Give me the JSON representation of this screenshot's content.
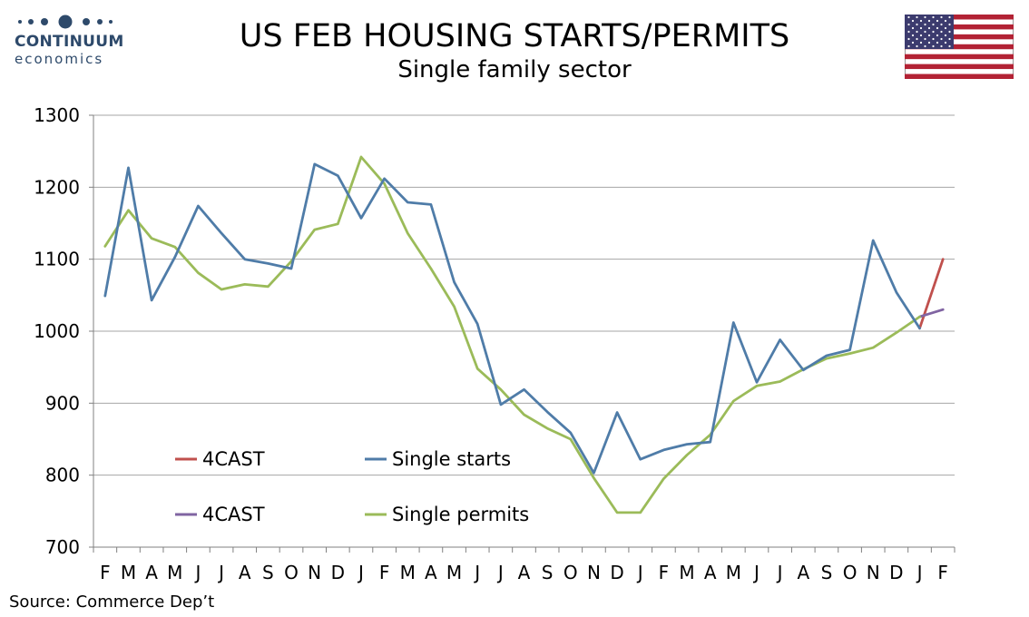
{
  "logo": {
    "brand": "CONTINUUM",
    "sub": "economics"
  },
  "chart_data": {
    "type": "line",
    "title": "US FEB HOUSING STARTS/PERMITS",
    "subtitle": "Single family sector",
    "source": "Source: Commerce Dep’t",
    "categories": [
      "F",
      "M",
      "A",
      "M",
      "J",
      "J",
      "A",
      "S",
      "O",
      "N",
      "D",
      "J",
      "F",
      "M",
      "A",
      "M",
      "J",
      "J",
      "A",
      "S",
      "O",
      "N",
      "D",
      "J",
      "F",
      "M",
      "A",
      "M",
      "J",
      "J",
      "A",
      "S",
      "O",
      "N",
      "D",
      "J",
      "F"
    ],
    "ylim": [
      700,
      1300
    ],
    "yticks": [
      "700",
      "800",
      "900",
      "1000",
      "1100",
      "1200",
      "1300"
    ],
    "grid": true,
    "series": [
      {
        "name": "Single starts",
        "color": "#4f7ca8",
        "values": [
          1049,
          1227,
          1043,
          1103,
          1174,
          1136,
          1100,
          1094,
          1087,
          1232,
          1216,
          1157,
          1212,
          1179,
          1176,
          1068,
          1010,
          898,
          919,
          888,
          859,
          803,
          887,
          822,
          835,
          843,
          846,
          1012,
          929,
          988,
          946,
          966,
          974,
          1126,
          1054,
          1004,
          null
        ]
      },
      {
        "name": "Single permits",
        "color": "#9bbb59",
        "values": [
          1118,
          1168,
          1129,
          1117,
          1081,
          1058,
          1065,
          1062,
          1097,
          1141,
          1149,
          1242,
          1205,
          1136,
          1087,
          1034,
          948,
          919,
          884,
          865,
          850,
          796,
          748,
          748,
          795,
          828,
          856,
          903,
          924,
          930,
          947,
          962,
          969,
          977,
          998,
          1020,
          null
        ]
      },
      {
        "name": "4CAST",
        "color": "#c0504d",
        "values": [
          null,
          null,
          null,
          null,
          null,
          null,
          null,
          null,
          null,
          null,
          null,
          null,
          null,
          null,
          null,
          null,
          null,
          null,
          null,
          null,
          null,
          null,
          null,
          null,
          null,
          null,
          null,
          null,
          null,
          null,
          null,
          null,
          null,
          null,
          null,
          1004,
          1100
        ]
      },
      {
        "name": "4CAST",
        "color": "#8064a2",
        "values": [
          null,
          null,
          null,
          null,
          null,
          null,
          null,
          null,
          null,
          null,
          null,
          null,
          null,
          null,
          null,
          null,
          null,
          null,
          null,
          null,
          null,
          null,
          null,
          null,
          null,
          null,
          null,
          null,
          null,
          null,
          null,
          null,
          null,
          null,
          null,
          1020,
          1030
        ]
      }
    ],
    "legend": [
      {
        "label": "4CAST",
        "color": "#c0504d"
      },
      {
        "label": "Single starts",
        "color": "#4f7ca8"
      },
      {
        "label": "4CAST",
        "color": "#8064a2"
      },
      {
        "label": "Single permits",
        "color": "#9bbb59"
      }
    ],
    "legend_position": "bottom-left"
  },
  "colors": {
    "grid": "#a6a6a6",
    "axis": "#808080",
    "logo": "#2e4a6b"
  },
  "flag": {
    "icon": "us-flag"
  }
}
